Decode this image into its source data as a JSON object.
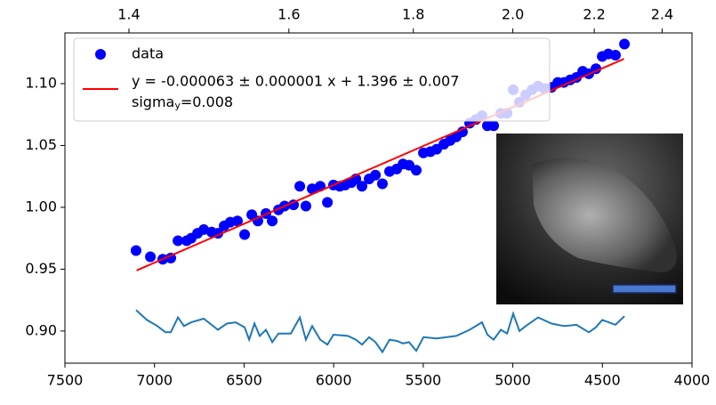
{
  "chart_data": {
    "type": "scatter",
    "xlim": [
      7500,
      4000
    ],
    "xticks": [
      7500,
      7000,
      6500,
      6000,
      5500,
      5000,
      4500,
      4000
    ],
    "x2lim": [
      1.3333,
      2.5
    ],
    "x2scale": "reciprocal",
    "x2ticks": [
      1.4,
      1.6,
      1.8,
      {
        "value": 2.0,
        "label": "2.0"
      },
      2.2,
      2.4
    ],
    "ylim": [
      0.874,
      1.141
    ],
    "yticks": [
      {
        "value": 0.9,
        "label": "0.90"
      },
      0.95,
      {
        "value": 1.0,
        "label": "1.00"
      },
      1.05,
      {
        "value": 1.1,
        "label": "1.10"
      }
    ],
    "legend": "upper left",
    "fit_note": {
      "text": "sigma",
      "sub": "y",
      "rest": "=0.008"
    },
    "series": [
      {
        "name": "data",
        "type": "scatter",
        "color": "#0000ff",
        "x": [
          7103,
          7023,
          6954,
          6909,
          6869,
          6820,
          6795,
          6760,
          6725,
          6681,
          6646,
          6611,
          6577,
          6537,
          6497,
          6457,
          6423,
          6378,
          6343,
          6308,
          6274,
          6224,
          6189,
          6155,
          6120,
          6075,
          6035,
          6001,
          5966,
          5936,
          5901,
          5876,
          5842,
          5802,
          5767,
          5728,
          5688,
          5648,
          5613,
          5579,
          5539,
          5499,
          5460,
          5425,
          5385,
          5350,
          5316,
          5281,
          5241,
          5206,
          5172,
          5142,
          5107,
          5067,
          5032,
          4998,
          4963,
          4928,
          4893,
          4859,
          4824,
          4784,
          4749,
          4715,
          4680,
          4645,
          4610,
          4576,
          4536,
          4501,
          4467,
          4427,
          4377
        ],
        "values": [
          0.965,
          0.96,
          0.958,
          0.959,
          0.973,
          0.973,
          0.975,
          0.979,
          0.982,
          0.98,
          0.979,
          0.985,
          0.988,
          0.989,
          0.978,
          0.994,
          0.989,
          0.995,
          0.989,
          0.998,
          1.001,
          1.002,
          1.017,
          1.001,
          1.015,
          1.017,
          1.004,
          1.018,
          1.017,
          1.018,
          1.02,
          1.023,
          1.017,
          1.023,
          1.026,
          1.019,
          1.029,
          1.031,
          1.035,
          1.034,
          1.03,
          1.044,
          1.045,
          1.047,
          1.051,
          1.054,
          1.057,
          1.061,
          1.068,
          1.071,
          1.074,
          1.066,
          1.066,
          1.076,
          1.076,
          1.095,
          1.085,
          1.091,
          1.095,
          1.098,
          1.096,
          1.097,
          1.101,
          1.101,
          1.103,
          1.105,
          1.11,
          1.108,
          1.112,
          1.122,
          1.124,
          1.123,
          1.132
        ]
      },
      {
        "name": "y = -0.000063 ± 0.000001 x + 1.396 ± 0.007",
        "type": "line",
        "color": "#ff0000",
        "x": [
          7100,
          4380
        ],
        "values": [
          0.949,
          1.12
        ]
      },
      {
        "type": "line",
        "color": "#1f77b4",
        "x": [
          7103,
          7043,
          6984,
          6939,
          6909,
          6869,
          6835,
          6795,
          6725,
          6646,
          6596,
          6547,
          6497,
          6472,
          6442,
          6413,
          6378,
          6343,
          6308,
          6239,
          6189,
          6155,
          6120,
          6075,
          6035,
          6001,
          5921,
          5876,
          5842,
          5802,
          5767,
          5728,
          5688,
          5648,
          5613,
          5579,
          5539,
          5499,
          5425,
          5316,
          5241,
          5172,
          5142,
          5107,
          5067,
          5032,
          4998,
          4963,
          4928,
          4859,
          4784,
          4715,
          4645,
          4576,
          4536,
          4501,
          4427,
          4377
        ],
        "values": [
          0.917,
          0.909,
          0.904,
          0.899,
          0.899,
          0.911,
          0.904,
          0.907,
          0.91,
          0.901,
          0.906,
          0.907,
          0.903,
          0.893,
          0.906,
          0.896,
          0.901,
          0.891,
          0.898,
          0.898,
          0.911,
          0.893,
          0.904,
          0.893,
          0.889,
          0.897,
          0.896,
          0.893,
          0.889,
          0.895,
          0.891,
          0.883,
          0.893,
          0.892,
          0.89,
          0.891,
          0.884,
          0.895,
          0.894,
          0.896,
          0.901,
          0.907,
          0.897,
          0.893,
          0.901,
          0.898,
          0.914,
          0.9,
          0.904,
          0.911,
          0.906,
          0.904,
          0.905,
          0.899,
          0.903,
          0.909,
          0.905,
          0.912
        ]
      }
    ]
  }
}
